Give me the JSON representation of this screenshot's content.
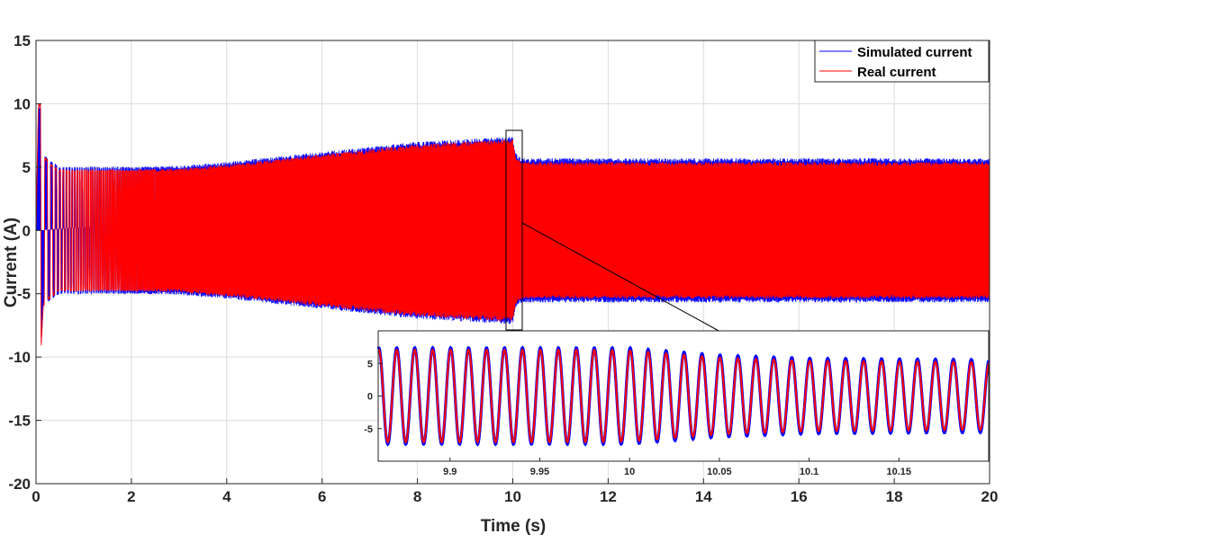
{
  "chart_data": [
    {
      "type": "line",
      "title": "",
      "xlabel": "Time (s)",
      "ylabel": "Current (A)",
      "xlim": [
        0,
        20
      ],
      "ylim": [
        -20,
        15
      ],
      "x_ticks": [
        0,
        2,
        4,
        6,
        8,
        10,
        12,
        14,
        16,
        18,
        20
      ],
      "x_tick_labels": [
        "0",
        "2",
        "4",
        "6",
        "8",
        "10",
        "12",
        "14",
        "16",
        "18",
        "20"
      ],
      "y_ticks": [
        15,
        10,
        5,
        0,
        -5,
        -10,
        -15,
        -20
      ],
      "y_tick_labels": [
        "15",
        "10",
        "5",
        "0",
        "-5",
        "-10",
        "-15",
        "-20"
      ],
      "grid": true,
      "legend_position": "top-right",
      "series": [
        {
          "name": "Simulated current",
          "color": "#0000ff",
          "envelope_t": [
            0,
            0.05,
            0.1,
            0.15,
            0.3,
            0.5,
            1,
            2,
            3,
            4,
            5,
            6,
            7,
            8,
            9,
            9.9,
            10.0,
            10.05,
            10.1,
            10.2,
            11,
            12,
            14,
            16,
            18,
            20
          ],
          "envelope_amp": [
            0,
            9.8,
            9.8,
            6,
            5.5,
            5.0,
            5.0,
            5.0,
            5.1,
            5.4,
            5.8,
            6.2,
            6.6,
            7.0,
            7.2,
            7.4,
            7.4,
            6.2,
            5.9,
            5.7,
            5.7,
            5.7,
            5.7,
            5.7,
            5.7,
            5.7
          ]
        },
        {
          "name": "Real current",
          "color": "#ff0000",
          "envelope_t": [
            0,
            0.05,
            0.1,
            0.15,
            0.3,
            0.5,
            1,
            2,
            3,
            4,
            5,
            6,
            7,
            8,
            9,
            9.9,
            10.0,
            10.05,
            10.1,
            10.2,
            11,
            12,
            14,
            16,
            18,
            20
          ],
          "envelope_amp": [
            0,
            10,
            10,
            6,
            5.3,
            4.8,
            4.8,
            4.8,
            4.9,
            5.2,
            5.6,
            6.0,
            6.4,
            6.8,
            7.0,
            7.2,
            7.2,
            6.0,
            5.6,
            5.4,
            5.4,
            5.4,
            5.4,
            5.4,
            5.4,
            5.4
          ]
        }
      ]
    },
    {
      "type": "line",
      "title": "",
      "xlabel": "",
      "ylabel": "",
      "xlim": [
        9.86,
        10.2
      ],
      "ylim": [
        -10,
        10
      ],
      "x_ticks": [
        9.9,
        9.95,
        10,
        10.05,
        10.1,
        10.15
      ],
      "x_tick_labels": [
        "9.9",
        "9.95",
        "10",
        "10.05",
        "10.1",
        "10.15"
      ],
      "y_ticks": [
        5,
        0,
        -5
      ],
      "y_tick_labels": [
        "5",
        "0",
        "-5"
      ],
      "grid": false,
      "frequency_hz": 100,
      "series": [
        {
          "name": "Simulated current",
          "color": "#0000ff",
          "envelope_t": [
            9.86,
            9.98,
            10.0,
            10.05,
            10.1,
            10.2
          ],
          "envelope_amp": [
            7.4,
            7.4,
            7.4,
            6.3,
            5.8,
            5.6
          ]
        },
        {
          "name": "Real current",
          "color": "#ff0000",
          "envelope_t": [
            9.86,
            9.98,
            10.0,
            10.05,
            10.1,
            10.2
          ],
          "envelope_amp": [
            7.1,
            7.1,
            7.0,
            5.9,
            5.4,
            5.2
          ]
        }
      ]
    }
  ]
}
